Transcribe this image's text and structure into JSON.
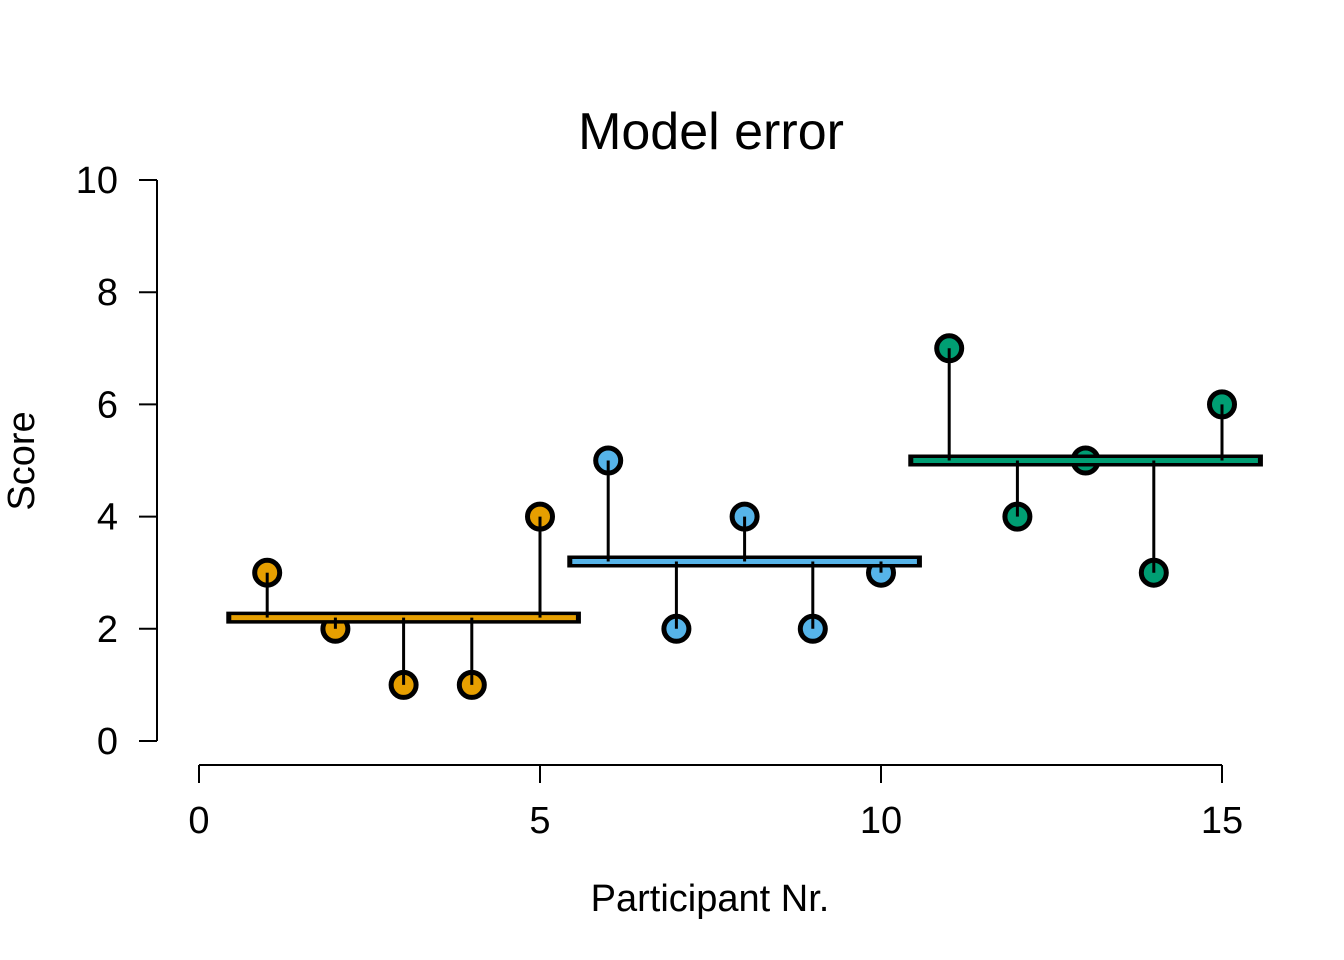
{
  "chart_data": {
    "type": "scatter",
    "title": "Model error",
    "xlabel": "Participant Nr.",
    "ylabel": "Score",
    "xlim": [
      0,
      15
    ],
    "ylim": [
      0,
      10
    ],
    "xticks": [
      "0",
      "5",
      "10",
      "15"
    ],
    "yticks": [
      "0",
      "2",
      "4",
      "6",
      "8",
      "10"
    ],
    "grid": false,
    "groups": [
      {
        "color": "#E69F00",
        "x": [
          1,
          2,
          3,
          4,
          5
        ],
        "y": [
          3,
          2,
          1,
          1,
          4
        ],
        "mean": 2.2
      },
      {
        "color": "#56B4E9",
        "x": [
          6,
          7,
          8,
          9,
          10
        ],
        "y": [
          5,
          2,
          4,
          2,
          3
        ],
        "mean": 3.2
      },
      {
        "color": "#009E73",
        "x": [
          11,
          12,
          13,
          14,
          15
        ],
        "y": [
          7,
          4,
          5,
          3,
          6
        ],
        "mean": 5.0
      }
    ]
  }
}
